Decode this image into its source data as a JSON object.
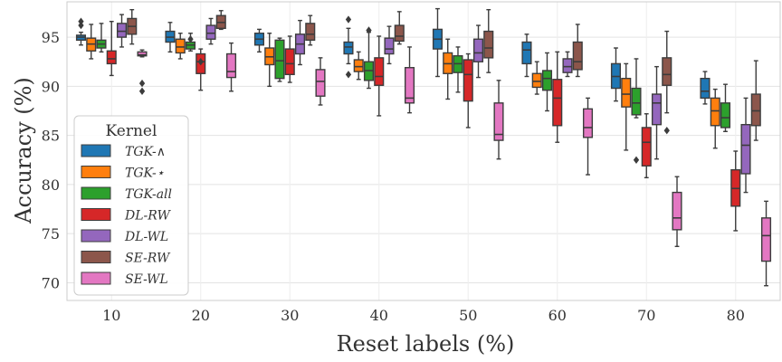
{
  "chart_data": {
    "type": "box",
    "xlabel": "Reset labels (%)",
    "ylabel": "Accuracy (%)",
    "ylim": [
      68.2,
      98.6
    ],
    "yticks": [
      70,
      75,
      80,
      85,
      90,
      95
    ],
    "categories": [
      "10",
      "20",
      "30",
      "40",
      "50",
      "60",
      "70",
      "80"
    ],
    "grid": true,
    "legend": {
      "title": "Kernel",
      "placement": "lower-left"
    },
    "series": [
      {
        "name": "TGK-∧",
        "color": "#1f77b4",
        "boxes": [
          {
            "min": 94.2,
            "q1": 94.7,
            "median": 95.0,
            "q3": 95.2,
            "max": 95.5,
            "outliers": [
              96.6,
              96.2
            ]
          },
          {
            "min": 93.5,
            "q1": 94.5,
            "median": 95.0,
            "q3": 95.6,
            "max": 96.5,
            "outliers": []
          },
          {
            "min": 93.5,
            "q1": 94.2,
            "median": 94.8,
            "q3": 95.4,
            "max": 95.8,
            "outliers": []
          },
          {
            "min": 92.3,
            "q1": 93.3,
            "median": 94.0,
            "q3": 94.5,
            "max": 95.9,
            "outliers": [
              96.8,
              91.2
            ]
          },
          {
            "min": 91.0,
            "q1": 93.8,
            "median": 94.8,
            "q3": 95.8,
            "max": 97.9,
            "outliers": []
          },
          {
            "min": 91.0,
            "q1": 92.3,
            "median": 93.7,
            "q3": 94.5,
            "max": 95.3,
            "outliers": []
          },
          {
            "min": 88.5,
            "q1": 89.8,
            "median": 91.0,
            "q3": 92.3,
            "max": 93.9,
            "outliers": []
          },
          {
            "min": 88.2,
            "q1": 88.8,
            "median": 89.5,
            "q3": 90.8,
            "max": 91.5,
            "outliers": []
          }
        ]
      },
      {
        "name": "TGK-⋆",
        "color": "#ff7f0e",
        "boxes": [
          {
            "min": 92.8,
            "q1": 93.6,
            "median": 94.3,
            "q3": 94.9,
            "max": 96.3,
            "outliers": []
          },
          {
            "min": 92.8,
            "q1": 93.4,
            "median": 94.0,
            "q3": 94.8,
            "max": 95.4,
            "outliers": []
          },
          {
            "min": 90.0,
            "q1": 92.2,
            "median": 93.0,
            "q3": 93.9,
            "max": 95.4,
            "outliers": []
          },
          {
            "min": 90.7,
            "q1": 91.5,
            "median": 92.0,
            "q3": 92.7,
            "max": 93.5,
            "outliers": []
          },
          {
            "min": 88.7,
            "q1": 91.3,
            "median": 92.3,
            "q3": 93.4,
            "max": 94.8,
            "outliers": []
          },
          {
            "min": 89.2,
            "q1": 89.9,
            "median": 90.5,
            "q3": 91.3,
            "max": 92.5,
            "outliers": []
          },
          {
            "min": 83.5,
            "q1": 87.9,
            "median": 89.2,
            "q3": 90.8,
            "max": 92.3,
            "outliers": []
          },
          {
            "min": 83.7,
            "q1": 86.0,
            "median": 87.5,
            "q3": 88.8,
            "max": 89.7,
            "outliers": []
          }
        ]
      },
      {
        "name": "TGK-all",
        "color": "#2ca02c",
        "boxes": [
          {
            "min": 93.5,
            "q1": 93.9,
            "median": 94.3,
            "q3": 94.7,
            "max": 96.4,
            "outliers": []
          },
          {
            "min": 93.6,
            "q1": 93.8,
            "median": 94.2,
            "q3": 94.5,
            "max": 95.4,
            "outliers": [
              94.8
            ]
          },
          {
            "min": 90.5,
            "q1": 90.8,
            "median": 92.6,
            "q3": 94.7,
            "max": 94.9,
            "outliers": []
          },
          {
            "min": 89.8,
            "q1": 90.6,
            "median": 91.6,
            "q3": 92.5,
            "max": 95.5,
            "outliers": [
              95.7
            ]
          },
          {
            "min": 89.4,
            "q1": 91.4,
            "median": 92.3,
            "q3": 93.1,
            "max": 94.0,
            "outliers": []
          },
          {
            "min": 87.5,
            "q1": 89.6,
            "median": 90.8,
            "q3": 91.6,
            "max": 93.4,
            "outliers": []
          },
          {
            "min": 86.8,
            "q1": 87.1,
            "median": 88.3,
            "q3": 89.8,
            "max": 92.8,
            "outliers": [
              82.5
            ]
          },
          {
            "min": 85.4,
            "q1": 85.8,
            "median": 86.8,
            "q3": 88.3,
            "max": 90.2,
            "outliers": []
          }
        ]
      },
      {
        "name": "DL-RW",
        "color": "#d62728",
        "boxes": [
          {
            "min": 91.1,
            "q1": 92.3,
            "median": 92.8,
            "q3": 93.6,
            "max": 96.6,
            "outliers": []
          },
          {
            "min": 89.6,
            "q1": 91.3,
            "median": 92.5,
            "q3": 93.3,
            "max": 93.8,
            "outliers": [
              92.5
            ]
          },
          {
            "min": 90.4,
            "q1": 91.2,
            "median": 92.3,
            "q3": 93.8,
            "max": 95.1,
            "outliers": []
          },
          {
            "min": 87.0,
            "q1": 90.1,
            "median": 91.0,
            "q3": 92.9,
            "max": 95.1,
            "outliers": []
          },
          {
            "min": 85.8,
            "q1": 88.5,
            "median": 91.2,
            "q3": 92.7,
            "max": 93.3,
            "outliers": []
          },
          {
            "min": 84.3,
            "q1": 86.0,
            "median": 88.8,
            "q3": 90.7,
            "max": 93.5,
            "outliers": []
          },
          {
            "min": 80.7,
            "q1": 81.9,
            "median": 84.3,
            "q3": 85.8,
            "max": 87.2,
            "outliers": []
          },
          {
            "min": 75.3,
            "q1": 77.8,
            "median": 79.6,
            "q3": 81.5,
            "max": 83.4,
            "outliers": []
          }
        ]
      },
      {
        "name": "DL-WL",
        "color": "#9467bd",
        "boxes": [
          {
            "min": 94.0,
            "q1": 95.0,
            "median": 95.6,
            "q3": 96.4,
            "max": 97.3,
            "outliers": []
          },
          {
            "min": 94.3,
            "q1": 94.8,
            "median": 95.4,
            "q3": 96.2,
            "max": 96.9,
            "outliers": []
          },
          {
            "min": 92.2,
            "q1": 93.3,
            "median": 94.3,
            "q3": 95.3,
            "max": 96.7,
            "outliers": []
          },
          {
            "min": 92.3,
            "q1": 93.3,
            "median": 93.8,
            "q3": 94.9,
            "max": 96.1,
            "outliers": []
          },
          {
            "min": 90.9,
            "q1": 92.5,
            "median": 93.4,
            "q3": 94.8,
            "max": 96.2,
            "outliers": []
          },
          {
            "min": 91.0,
            "q1": 91.4,
            "median": 92.0,
            "q3": 92.8,
            "max": 93.5,
            "outliers": []
          },
          {
            "min": 82.6,
            "q1": 86.1,
            "median": 88.3,
            "q3": 89.2,
            "max": 92.0,
            "outliers": []
          },
          {
            "min": 79.2,
            "q1": 81.1,
            "median": 84.0,
            "q3": 86.1,
            "max": 88.8,
            "outliers": []
          }
        ]
      },
      {
        "name": "SE-RW",
        "color": "#8c564b",
        "boxes": [
          {
            "min": 94.3,
            "q1": 95.3,
            "median": 96.1,
            "q3": 96.9,
            "max": 97.8,
            "outliers": []
          },
          {
            "min": 95.8,
            "q1": 95.9,
            "median": 96.5,
            "q3": 97.2,
            "max": 97.7,
            "outliers": []
          },
          {
            "min": 94.2,
            "q1": 94.7,
            "median": 95.3,
            "q3": 96.4,
            "max": 97.2,
            "outliers": []
          },
          {
            "min": 94.3,
            "q1": 94.6,
            "median": 95.1,
            "q3": 96.2,
            "max": 97.6,
            "outliers": []
          },
          {
            "min": 91.4,
            "q1": 92.9,
            "median": 93.9,
            "q3": 95.6,
            "max": 97.8,
            "outliers": []
          },
          {
            "min": 91.0,
            "q1": 91.7,
            "median": 92.5,
            "q3": 94.5,
            "max": 96.3,
            "outliers": []
          },
          {
            "min": 87.3,
            "q1": 90.1,
            "median": 91.2,
            "q3": 92.9,
            "max": 95.6,
            "outliers": [
              85.5
            ]
          },
          {
            "min": 84.5,
            "q1": 86.0,
            "median": 87.5,
            "q3": 89.2,
            "max": 92.6,
            "outliers": []
          }
        ]
      },
      {
        "name": "SE-WL",
        "color": "#e377c2",
        "boxes": [
          {
            "min": 93.0,
            "q1": 93.1,
            "median": 93.2,
            "q3": 93.5,
            "max": 93.7,
            "outliers": [
              90.3,
              89.5
            ]
          },
          {
            "min": 89.5,
            "q1": 90.9,
            "median": 91.5,
            "q3": 93.3,
            "max": 94.4,
            "outliers": []
          },
          {
            "min": 88.1,
            "q1": 89.0,
            "median": 90.5,
            "q3": 91.7,
            "max": 92.9,
            "outliers": []
          },
          {
            "min": 87.3,
            "q1": 88.3,
            "median": 88.8,
            "q3": 91.9,
            "max": 94.0,
            "outliers": []
          },
          {
            "min": 82.6,
            "q1": 84.5,
            "median": 85.1,
            "q3": 88.3,
            "max": 90.6,
            "outliers": []
          },
          {
            "min": 81.0,
            "q1": 84.8,
            "median": 85.8,
            "q3": 87.7,
            "max": 88.8,
            "outliers": []
          },
          {
            "min": 73.7,
            "q1": 75.4,
            "median": 76.6,
            "q3": 79.2,
            "max": 80.8,
            "outliers": []
          },
          {
            "min": 69.7,
            "q1": 72.2,
            "median": 74.8,
            "q3": 76.6,
            "max": 78.3,
            "outliers": []
          }
        ]
      }
    ]
  }
}
